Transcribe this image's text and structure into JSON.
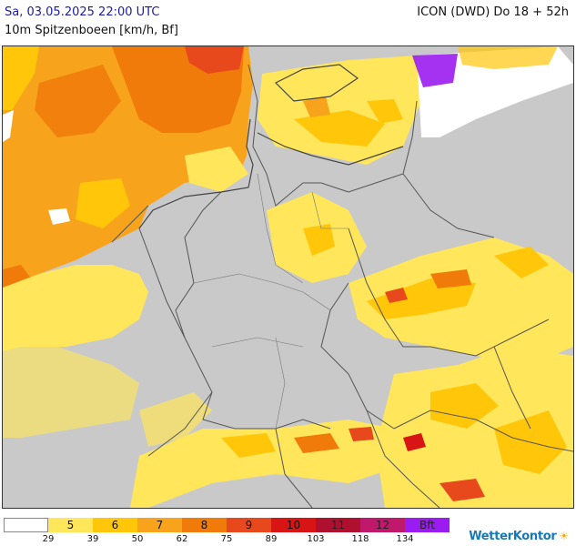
{
  "header": {
    "datetime": "Sa, 03.05.2025 22:00 UTC",
    "model": "ICON (DWD) Do 18 + 52h",
    "parameter": "10m Spitzenboeen [km/h, Bf]"
  },
  "legend": {
    "segments": [
      {
        "label": "",
        "color": "#ffffff"
      },
      {
        "label": "5",
        "color": "#ffe65a"
      },
      {
        "label": "6",
        "color": "#ffc60a"
      },
      {
        "label": "7",
        "color": "#f7a41c"
      },
      {
        "label": "8",
        "color": "#f07a0a"
      },
      {
        "label": "9",
        "color": "#e8491c"
      },
      {
        "label": "10",
        "color": "#d91414"
      },
      {
        "label": "11",
        "color": "#b01030"
      },
      {
        "label": "12",
        "color": "#c0186a"
      },
      {
        "label": "Bft",
        "color": "#9b1cf0"
      }
    ],
    "ticks": [
      "29",
      "39",
      "50",
      "62",
      "75",
      "89",
      "103",
      "118",
      "134"
    ]
  },
  "brand": {
    "name": "WetterKontor"
  },
  "colors": {
    "land_background": "#c9c9c9",
    "sea_no_data": "#ffffff",
    "border_lines": "#555555"
  }
}
